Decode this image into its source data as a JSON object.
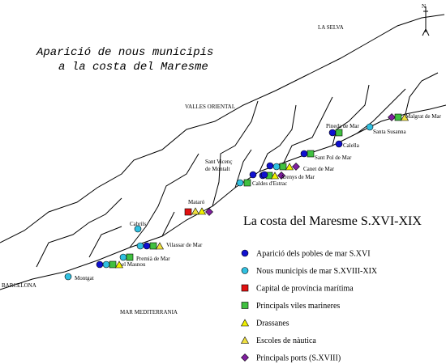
{
  "title": {
    "lines": [
      "Aparició de nous municipis",
      "a la costa del Maresme"
    ]
  },
  "regions": {
    "north": "N",
    "selva": "LA SELVA",
    "valles": "VALLES ORIENTAL",
    "barcelona": "BARCELONA",
    "sea": "MAR MEDITERRANIA"
  },
  "towns": [
    {
      "name": "Malgrat de Mar"
    },
    {
      "name": "Santa Susanna"
    },
    {
      "name": "Pineda de Mar"
    },
    {
      "name": "Calella"
    },
    {
      "name": "Sant Pol de Mar"
    },
    {
      "name": "Canet de Mar"
    },
    {
      "name_lines": [
        "Sant Vicenç",
        "de Montalt"
      ]
    },
    {
      "name": "Arenys de Mar"
    },
    {
      "name": "Caldes d'Estrac"
    },
    {
      "name": "Mataró"
    },
    {
      "name": "Cabrils"
    },
    {
      "name": "Vilassar de Mar"
    },
    {
      "name": "Premià de Mar"
    },
    {
      "name": "el Masnou"
    },
    {
      "name": "Montgat"
    }
  ],
  "legend": {
    "title": "La costa del Maresme S.XVI-XIX",
    "items": [
      "Aparició dels pobles de mar S.XVI",
      "Nous municipis de mar S.XVIII-XIX",
      "Capital de província marítima",
      "Principals viles marineres",
      "Drassanes",
      "Escoles de nàutica",
      "Principals ports (S.XVIII)"
    ]
  }
}
